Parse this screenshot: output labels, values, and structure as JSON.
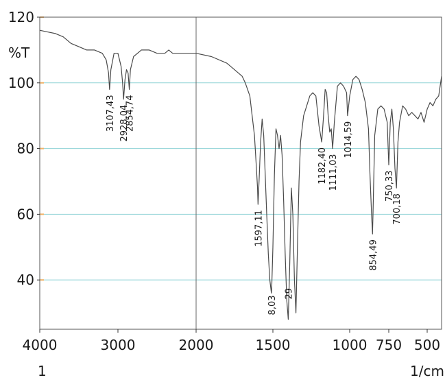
{
  "chart_data": {
    "type": "line",
    "title": "",
    "ylabel": "%T",
    "xlabel": "1/cm",
    "x_left_label": "1",
    "x_range": [
      4000,
      400
    ],
    "ylim": [
      25,
      120
    ],
    "x_ticks": [
      {
        "value": 4000,
        "label": "4000"
      },
      {
        "value": 3000,
        "label": "3000"
      },
      {
        "value": 2000,
        "label": "2000"
      },
      {
        "value": 1500,
        "label": "1500"
      },
      {
        "value": 1000,
        "label": "1000"
      },
      {
        "value": 750,
        "label": "750"
      },
      {
        "value": 500,
        "label": "500"
      }
    ],
    "y_ticks": [
      {
        "value": 120,
        "label": "120"
      },
      {
        "value": 100,
        "label": "100"
      },
      {
        "value": 80,
        "label": "80"
      },
      {
        "value": 60,
        "label": "60"
      },
      {
        "value": 40,
        "label": "40"
      }
    ],
    "grid": {
      "horizontal_major": [
        120,
        100,
        80,
        60,
        40
      ],
      "vertical": [
        2000
      ]
    },
    "colors": {
      "line": "#4a4a4a",
      "grid_cyan": "#8fd3d6",
      "grid_orange": "#f0b36a",
      "frame": "#555555"
    },
    "series": [
      {
        "x": [
          4000,
          3900,
          3800,
          3700,
          3600,
          3500,
          3400,
          3300,
          3200,
          3150,
          3120,
          3107,
          3090,
          3050,
          3000,
          2960,
          2940,
          2928,
          2910,
          2890,
          2870,
          2854,
          2840,
          2800,
          2700,
          2600,
          2500,
          2400,
          2350,
          2300,
          2200,
          2100,
          2000,
          1900,
          1800,
          1750,
          1700,
          1680,
          1650,
          1640,
          1620,
          1610,
          1600,
          1597,
          1590,
          1580,
          1570,
          1560,
          1550,
          1540,
          1530,
          1520,
          1510,
          1508,
          1500,
          1490,
          1480,
          1470,
          1460,
          1450,
          1440,
          1430,
          1420,
          1410,
          1400,
          1390,
          1380,
          1370,
          1360,
          1350,
          1340,
          1330,
          1320,
          1300,
          1280,
          1260,
          1240,
          1220,
          1200,
          1182,
          1170,
          1160,
          1150,
          1140,
          1130,
          1120,
          1111,
          1100,
          1080,
          1060,
          1040,
          1020,
          1014,
          1000,
          980,
          960,
          940,
          920,
          900,
          880,
          870,
          860,
          854,
          850,
          840,
          820,
          800,
          780,
          760,
          750,
          740,
          730,
          720,
          710,
          700,
          690,
          680,
          660,
          640,
          620,
          600,
          580,
          560,
          540,
          520,
          500,
          480,
          460,
          440,
          420,
          400
        ],
        "y": [
          116,
          115.5,
          115,
          114,
          112,
          111,
          110,
          110,
          109,
          107,
          103,
          98,
          104,
          109,
          109,
          105,
          100,
          95,
          101,
          104,
          103,
          98,
          104,
          108,
          110,
          110,
          109,
          109,
          110,
          109,
          109,
          109,
          109,
          108,
          106,
          104,
          102,
          100,
          96,
          92,
          84,
          76,
          68,
          63,
          70,
          82,
          89,
          84,
          72,
          60,
          48,
          40,
          36,
          37,
          50,
          72,
          86,
          84,
          80,
          84,
          78,
          64,
          48,
          34,
          28,
          45,
          68,
          60,
          40,
          30,
          50,
          70,
          82,
          90,
          93,
          96,
          97,
          96,
          87,
          82,
          90,
          98,
          97,
          90,
          85,
          86,
          80,
          88,
          99,
          100,
          99,
          97,
          90,
          96,
          101,
          102,
          101,
          98,
          94,
          86,
          72,
          60,
          54,
          62,
          84,
          92,
          93,
          92,
          88,
          75,
          88,
          92,
          86,
          74,
          68,
          82,
          88,
          93,
          92,
          90,
          91,
          90,
          89,
          91,
          88,
          92,
          94,
          93,
          95,
          96,
          102
        ]
      }
    ],
    "annotations": [
      {
        "x": 3107,
        "label": "3107,43"
      },
      {
        "x": 2928,
        "label": "2928,04"
      },
      {
        "x": 2854,
        "label": "2854,74"
      },
      {
        "x": 1597,
        "label": "1597,11"
      },
      {
        "x": 1508,
        "label": "8,03"
      },
      {
        "x": 1400,
        "label": "29"
      },
      {
        "x": 1182,
        "label": "1182,40"
      },
      {
        "x": 1111,
        "label": "1111,03"
      },
      {
        "x": 1014,
        "label": "1014,59"
      },
      {
        "x": 854,
        "label": "854,49"
      },
      {
        "x": 750,
        "label": "750,33"
      },
      {
        "x": 700,
        "label": "700,18"
      }
    ]
  }
}
